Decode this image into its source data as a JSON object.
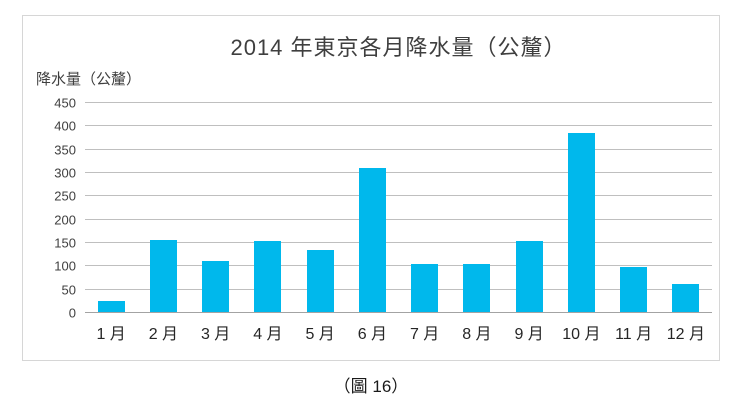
{
  "caption": "（圖 16）",
  "colors": {
    "bar": "#00b8ec",
    "gridline": "#bfbfbf",
    "axis_line": "#a3a3a3",
    "frame_border": "#d6d6d6",
    "title_text": "#3f3f3f",
    "tick_text": "#404040",
    "month_text": "#262626",
    "background": "#ffffff"
  },
  "chart_data": {
    "type": "bar",
    "title": "2014 年東京各月降水量（公釐）",
    "ylabel": "降水量（公釐）",
    "xlabel": "",
    "categories": [
      "1 月",
      "2 月",
      "3 月",
      "4 月",
      "5 月",
      "6 月",
      "7 月",
      "8 月",
      "9 月",
      "10 月",
      "11 月",
      "12 月"
    ],
    "values": [
      25,
      157,
      112,
      155,
      135,
      310,
      105,
      105,
      155,
      385,
      98,
      62
    ],
    "ylim": [
      0,
      450
    ],
    "yticks": [
      0,
      50,
      100,
      150,
      200,
      250,
      300,
      350,
      400,
      450
    ],
    "grid": true,
    "legend_position": "none",
    "bar_color": "#00b8ec"
  }
}
